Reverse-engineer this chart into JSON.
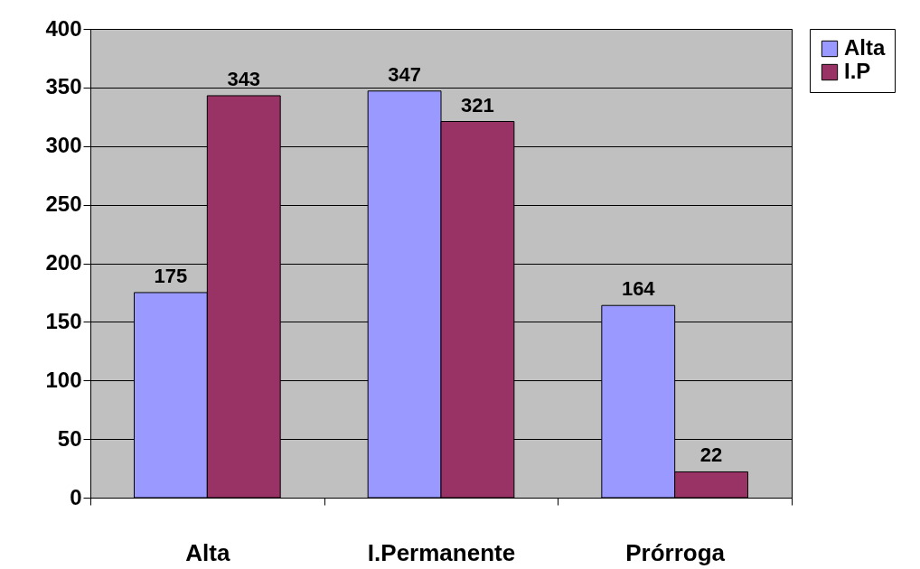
{
  "chart_data": {
    "type": "bar",
    "categories": [
      "Alta",
      "I.Permanente",
      "Prórroga"
    ],
    "series": [
      {
        "name": "Alta",
        "color": "#9999ff",
        "values": [
          175,
          347,
          164
        ]
      },
      {
        "name": "I.P",
        "color": "#993366",
        "values": [
          343,
          321,
          22
        ]
      }
    ],
    "ylim": [
      0,
      400
    ],
    "yticks": [
      0,
      50,
      100,
      150,
      200,
      250,
      300,
      350,
      400
    ],
    "grid": "y",
    "legend": "right",
    "data_labels": true
  }
}
